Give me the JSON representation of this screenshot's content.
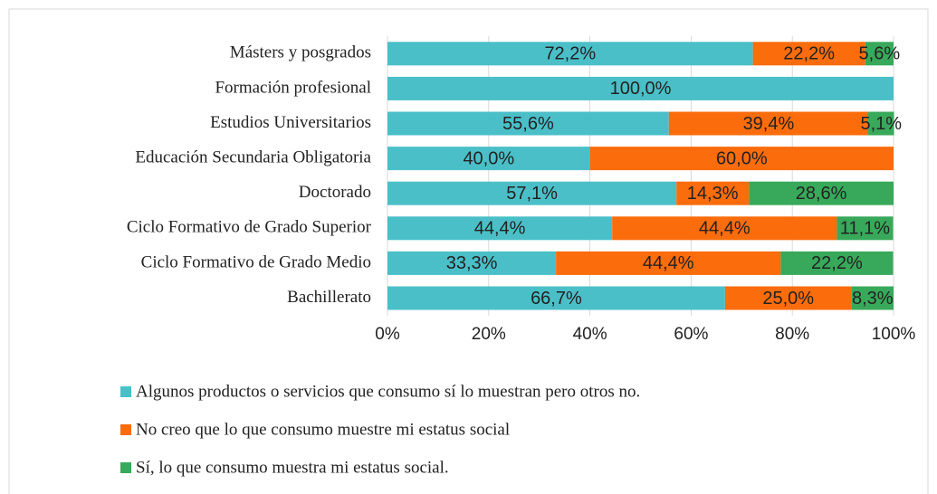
{
  "chart_data": {
    "type": "stacked-barh",
    "categories": [
      "Másters y posgrados",
      "Formación profesional",
      "Estudios Universitarios",
      "Educación Secundaria Obligatoria",
      "Doctorado",
      "Ciclo Formativo de Grado Superior",
      "Ciclo Formativo de Grado Medio",
      "Bachillerato"
    ],
    "series": [
      {
        "name": "Algunos productos o servicios que consumo sí lo muestran pero otros no.",
        "color": "#4bbfc8",
        "values": [
          72.2,
          100,
          55.6,
          40,
          57.1,
          44.4,
          33.3,
          66.7
        ],
        "value_labels": [
          "72,2%",
          "100,0%",
          "55,6%",
          "40,0%",
          "57,1%",
          "44,4%",
          "33,3%",
          "66,7%"
        ]
      },
      {
        "name": "No creo que lo que consumo muestre mi estatus social",
        "color": "#fb6c0c",
        "values": [
          22.2,
          0,
          39.4,
          60,
          14.3,
          44.4,
          44.4,
          25.0
        ],
        "value_labels": [
          "22,2%",
          null,
          "39,4%",
          "60,0%",
          "14,3%",
          "44,4%",
          "44,4%",
          "25,0%"
        ]
      },
      {
        "name": "Sí, lo que consumo muestra mi estatus social.",
        "color": "#38a95a",
        "values": [
          5.6,
          0,
          5.1,
          0,
          28.6,
          11.1,
          22.2,
          8.3
        ],
        "value_labels": [
          "5,6%",
          null,
          "5,1%",
          null,
          "28,6%",
          "11,1%",
          "22,2%",
          "8,3%"
        ]
      }
    ],
    "xlim": [
      0,
      100
    ],
    "xticks": [
      {
        "value": 0,
        "label": "0%"
      },
      {
        "value": 20,
        "label": "20%"
      },
      {
        "value": 40,
        "label": "40%"
      },
      {
        "value": 60,
        "label": "60%"
      },
      {
        "value": 80,
        "label": "80%"
      },
      {
        "value": 100,
        "label": "100%"
      }
    ],
    "grid": true
  }
}
